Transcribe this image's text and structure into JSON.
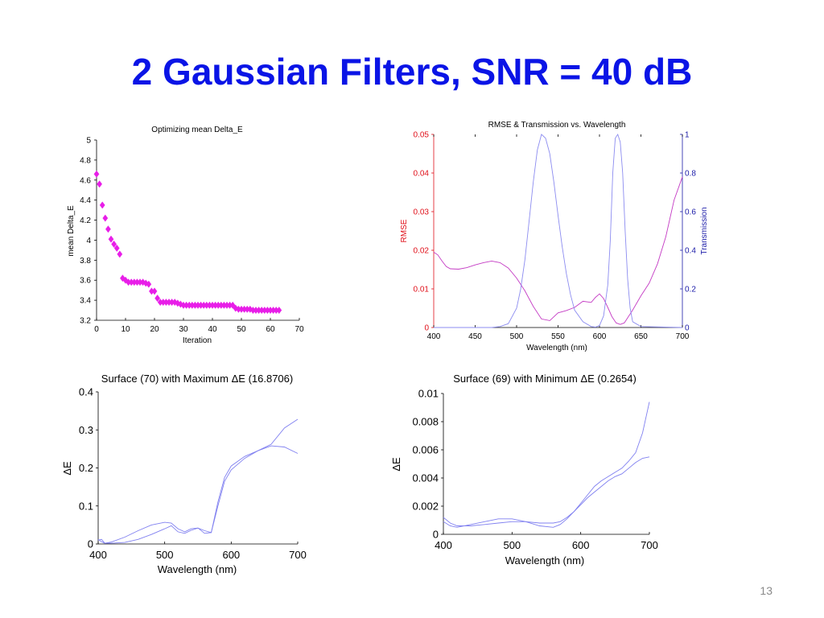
{
  "slide": {
    "title": "2 Gaussian Filters, SNR = 40 dB",
    "page_number": "13"
  },
  "chart_data": [
    {
      "id": "c1",
      "type": "scatter",
      "title": "Optimizing mean Delta_E",
      "xlabel": "Iteration",
      "ylabel": "mean Delta_E",
      "xlim": [
        0,
        70
      ],
      "ylim": [
        3.2,
        5
      ],
      "xticks": [
        0,
        10,
        20,
        30,
        40,
        50,
        60,
        70
      ],
      "yticks": [
        3.2,
        3.4,
        3.6,
        3.8,
        4,
        4.2,
        4.4,
        4.6,
        4.8,
        5
      ],
      "grid": false,
      "marker": "diamond",
      "color": "#e81ee8",
      "series": [
        {
          "x": [
            0,
            1,
            2,
            3,
            4,
            5,
            6,
            7,
            8,
            9,
            10,
            11,
            12,
            13,
            14,
            15,
            16,
            17,
            18,
            19,
            20,
            21,
            22,
            23,
            24,
            25,
            26,
            27,
            28,
            29,
            30,
            31,
            32,
            33,
            34,
            35,
            36,
            37,
            38,
            39,
            40,
            41,
            42,
            43,
            44,
            45,
            46,
            47,
            48,
            49,
            50,
            51,
            52,
            53,
            54,
            55,
            56,
            57,
            58,
            59,
            60,
            61,
            62,
            63
          ],
          "y": [
            4.66,
            4.56,
            4.35,
            4.22,
            4.11,
            4.01,
            3.96,
            3.92,
            3.86,
            3.62,
            3.6,
            3.58,
            3.58,
            3.58,
            3.58,
            3.58,
            3.58,
            3.57,
            3.56,
            3.49,
            3.49,
            3.42,
            3.38,
            3.38,
            3.38,
            3.38,
            3.38,
            3.38,
            3.37,
            3.36,
            3.35,
            3.35,
            3.35,
            3.35,
            3.35,
            3.35,
            3.35,
            3.35,
            3.35,
            3.35,
            3.35,
            3.35,
            3.35,
            3.35,
            3.35,
            3.35,
            3.35,
            3.35,
            3.32,
            3.31,
            3.31,
            3.31,
            3.31,
            3.31,
            3.3,
            3.3,
            3.3,
            3.3,
            3.3,
            3.3,
            3.3,
            3.3,
            3.3,
            3.3
          ]
        }
      ]
    },
    {
      "id": "c2",
      "type": "line",
      "title": "RMSE & Transmission vs. Wavelength",
      "xlabel": "Wavelength (nm)",
      "ylabel": "RMSE",
      "ylabel_right": "Transmission",
      "xlim": [
        400,
        700
      ],
      "ylim": [
        0,
        0.05
      ],
      "ylim_right": [
        0,
        1
      ],
      "xticks": [
        400,
        450,
        500,
        550,
        600,
        650,
        700
      ],
      "yticks": [
        0,
        0.01,
        0.02,
        0.03,
        0.04,
        0.05
      ],
      "yticks_right": [
        0,
        0.2,
        0.4,
        0.6,
        0.8,
        1
      ],
      "grid": false,
      "left_axis_color": "#e0101a",
      "right_axis_color": "#1a1aa8",
      "series": [
        {
          "axis": "left",
          "color": "#c43bc4",
          "x": [
            400,
            405,
            410,
            415,
            420,
            430,
            440,
            450,
            460,
            470,
            480,
            490,
            500,
            510,
            520,
            530,
            540,
            550,
            560,
            570,
            580,
            590,
            595,
            600,
            605,
            610,
            615,
            620,
            625,
            630,
            640,
            650,
            660,
            670,
            680,
            690,
            700
          ],
          "y": [
            0.0195,
            0.0188,
            0.0172,
            0.0158,
            0.0152,
            0.0151,
            0.0155,
            0.0162,
            0.0168,
            0.0172,
            0.0168,
            0.0154,
            0.0128,
            0.0095,
            0.0055,
            0.0022,
            0.0018,
            0.0038,
            0.0044,
            0.0052,
            0.0068,
            0.0065,
            0.0078,
            0.0087,
            0.0075,
            0.0052,
            0.0028,
            0.0012,
            0.0008,
            0.0012,
            0.0045,
            0.0082,
            0.0115,
            0.0165,
            0.0235,
            0.033,
            0.039
          ]
        },
        {
          "axis": "right",
          "color": "#8c8cf0",
          "x": [
            400,
            450,
            470,
            480,
            490,
            500,
            505,
            510,
            515,
            520,
            525,
            530,
            535,
            540,
            545,
            550,
            555,
            560,
            565,
            570,
            580,
            590,
            595,
            600,
            605,
            610,
            613,
            616,
            619,
            622,
            625,
            628,
            631,
            634,
            637,
            640,
            650,
            700
          ],
          "y": [
            0,
            0,
            0,
            0.005,
            0.02,
            0.1,
            0.2,
            0.35,
            0.55,
            0.75,
            0.92,
            1.0,
            0.98,
            0.9,
            0.75,
            0.58,
            0.42,
            0.28,
            0.17,
            0.09,
            0.03,
            0.005,
            0.002,
            0.01,
            0.06,
            0.22,
            0.45,
            0.8,
            0.98,
            1.0,
            0.96,
            0.8,
            0.5,
            0.25,
            0.1,
            0.03,
            0.005,
            0
          ]
        }
      ]
    },
    {
      "id": "c3",
      "type": "line",
      "title": "Surface (70) with Maximum ΔE (16.8706)",
      "xlabel": "Wavelength (nm)",
      "ylabel": "ΔE",
      "xlim": [
        400,
        700
      ],
      "ylim": [
        0,
        0.4
      ],
      "xticks": [
        400,
        500,
        600,
        700
      ],
      "yticks": [
        0,
        0.1,
        0.2,
        0.3,
        0.4
      ],
      "grid": false,
      "series": [
        {
          "color": "#8080f0",
          "x": [
            400,
            405,
            410,
            420,
            440,
            460,
            480,
            500,
            510,
            520,
            530,
            540,
            550,
            560,
            570,
            580,
            590,
            600,
            620,
            640,
            660,
            680,
            700
          ],
          "y": [
            0.012,
            0.006,
            0.002,
            0.005,
            0.018,
            0.035,
            0.05,
            0.057,
            0.055,
            0.04,
            0.032,
            0.04,
            0.042,
            0.028,
            0.03,
            0.1,
            0.165,
            0.195,
            0.225,
            0.245,
            0.258,
            0.255,
            0.238
          ]
        },
        {
          "color": "#8080f0",
          "x": [
            400,
            405,
            410,
            420,
            440,
            460,
            480,
            500,
            510,
            520,
            530,
            540,
            550,
            560,
            570,
            580,
            590,
            600,
            620,
            640,
            660,
            680,
            700
          ],
          "y": [
            0.01,
            0.012,
            0.002,
            0.002,
            0.004,
            0.012,
            0.025,
            0.04,
            0.048,
            0.032,
            0.028,
            0.036,
            0.042,
            0.035,
            0.03,
            0.11,
            0.175,
            0.205,
            0.23,
            0.245,
            0.262,
            0.305,
            0.328
          ]
        }
      ]
    },
    {
      "id": "c4",
      "type": "line",
      "title": "Surface (69) with Minimum ΔE (0.2654)",
      "xlabel": "Wavelength (nm)",
      "ylabel": "ΔE",
      "xlim": [
        400,
        700
      ],
      "ylim": [
        0,
        0.01
      ],
      "xticks": [
        400,
        500,
        600,
        700
      ],
      "yticks": [
        0,
        0.002,
        0.004,
        0.006,
        0.008,
        0.01
      ],
      "grid": false,
      "series": [
        {
          "color": "#8080f0",
          "x": [
            400,
            410,
            420,
            440,
            460,
            480,
            500,
            520,
            540,
            560,
            570,
            580,
            590,
            600,
            610,
            620,
            630,
            640,
            650,
            660,
            670,
            680,
            690,
            700
          ],
          "y": [
            0.0012,
            0.0008,
            0.0006,
            0.0006,
            0.0007,
            0.0008,
            0.0009,
            0.0009,
            0.0008,
            0.0008,
            0.0009,
            0.0012,
            0.0016,
            0.0021,
            0.0026,
            0.003,
            0.0034,
            0.0038,
            0.0041,
            0.0043,
            0.0047,
            0.0051,
            0.0054,
            0.0055
          ]
        },
        {
          "color": "#8080f0",
          "x": [
            400,
            410,
            420,
            440,
            460,
            480,
            500,
            520,
            540,
            560,
            570,
            580,
            590,
            600,
            610,
            620,
            630,
            640,
            650,
            660,
            670,
            680,
            690,
            700
          ],
          "y": [
            0.0009,
            0.0006,
            0.0005,
            0.0007,
            0.0009,
            0.0011,
            0.0011,
            0.0009,
            0.0006,
            0.0005,
            0.0007,
            0.0011,
            0.0016,
            0.0022,
            0.0028,
            0.0034,
            0.0038,
            0.0041,
            0.0044,
            0.0047,
            0.0052,
            0.0058,
            0.0072,
            0.0094
          ]
        }
      ]
    }
  ]
}
